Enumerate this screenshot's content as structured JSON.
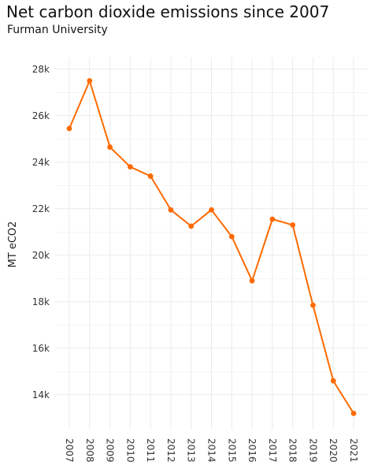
{
  "title": "Net carbon dioxide emissions since 2007",
  "subtitle": "Furman University",
  "colors": {
    "series": "#ff6a00",
    "grid": "#ebebeb",
    "text": "#333333"
  },
  "chart_data": {
    "type": "line",
    "title": "Net carbon dioxide emissions since 2007",
    "subtitle": "Furman University",
    "xlabel": "",
    "ylabel": "MT eCO2",
    "x": [
      "2007",
      "2008",
      "2009",
      "2010",
      "2011",
      "2012",
      "2013",
      "2014",
      "2015",
      "2016",
      "2017",
      "2018",
      "2019",
      "2020",
      "2021"
    ],
    "values": [
      25450,
      27500,
      24650,
      23800,
      23400,
      21950,
      21250,
      21950,
      20800,
      18900,
      21550,
      21300,
      17850,
      14600,
      13200
    ],
    "y_ticks": [
      14000,
      16000,
      18000,
      20000,
      22000,
      24000,
      26000,
      28000
    ],
    "y_tick_labels": [
      "14k",
      "16k",
      "18k",
      "20k",
      "22k",
      "24k",
      "26k",
      "28k"
    ],
    "ylim": [
      12500,
      28500
    ],
    "grid": true,
    "legend": "none"
  }
}
